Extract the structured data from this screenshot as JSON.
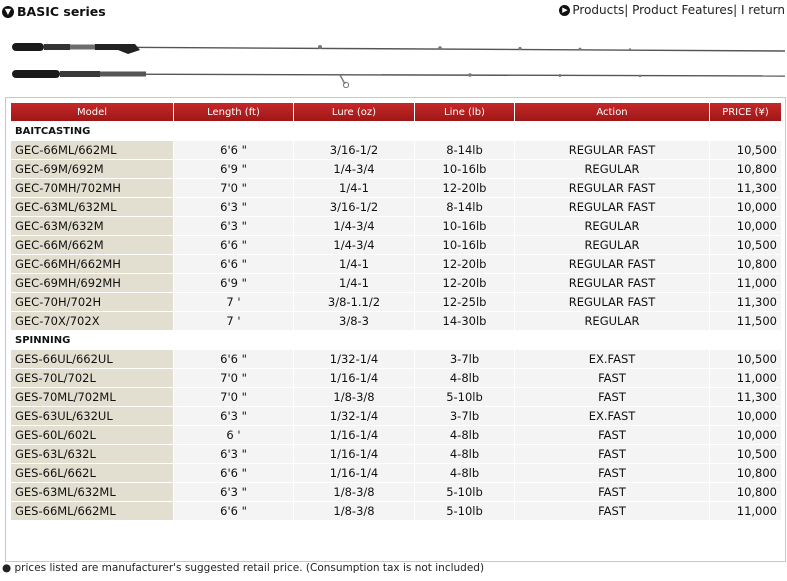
{
  "header": {
    "title": "BASIC series",
    "nav": {
      "products": "Products",
      "features": "Product Features",
      "return": "I return",
      "sep": "|"
    }
  },
  "table": {
    "columns": [
      "Model",
      "Length (ft)",
      "Lure (oz)",
      "Line (lb)",
      "Action",
      "PRICE (¥)"
    ],
    "sections": [
      {
        "name": "BAITCASTING",
        "rows": [
          [
            "GEC-66ML/662ML",
            "6'6 \"",
            "3/16-1/2",
            "8-14lb",
            "REGULAR FAST",
            "10,500"
          ],
          [
            "GEC-69M/692M",
            "6'9 \"",
            "1/4-3/4",
            "10-16lb",
            "REGULAR",
            "10,800"
          ],
          [
            "GEC-70MH/702MH",
            "7'0 \"",
            "1/4-1",
            "12-20lb",
            "REGULAR FAST",
            "11,300"
          ],
          [
            "GEC-63ML/632ML",
            "6'3 \"",
            "3/16-1/2",
            "8-14lb",
            "REGULAR FAST",
            "10,000"
          ],
          [
            "GEC-63M/632M",
            "6'3 \"",
            "1/4-3/4",
            "10-16lb",
            "REGULAR",
            "10,000"
          ],
          [
            "GEC-66M/662M",
            "6'6 \"",
            "1/4-3/4",
            "10-16lb",
            "REGULAR",
            "10,500"
          ],
          [
            "GEC-66MH/662MH",
            "6'6 \"",
            "1/4-1",
            "12-20lb",
            "REGULAR FAST",
            "10,800"
          ],
          [
            "GEC-69MH/692MH",
            "6'9 \"",
            "1/4-1",
            "12-20lb",
            "REGULAR FAST",
            "11,000"
          ],
          [
            "GEC-70H/702H",
            "7 '",
            "3/8-1.1/2",
            "12-25lb",
            "REGULAR FAST",
            "11,300"
          ],
          [
            "GEC-70X/702X",
            "7 '",
            "3/8-3",
            "14-30lb",
            "REGULAR",
            "11,500"
          ]
        ]
      },
      {
        "name": "SPINNING",
        "rows": [
          [
            "GES-66UL/662UL",
            "6'6 \"",
            "1/32-1/4",
            "3-7lb",
            "EX.FAST",
            "10,500"
          ],
          [
            "GES-70L/702L",
            "7'0 \"",
            "1/16-1/4",
            "4-8lb",
            "FAST",
            "11,000"
          ],
          [
            "GES-70ML/702ML",
            "7'0 \"",
            "1/8-3/8",
            "5-10lb",
            "FAST",
            "11,300"
          ],
          [
            "GES-63UL/632UL",
            "6'3 \"",
            "1/32-1/4",
            "3-7lb",
            "EX.FAST",
            "10,000"
          ],
          [
            "GES-60L/602L",
            "6 '",
            "1/16-1/4",
            "4-8lb",
            "FAST",
            "10,000"
          ],
          [
            "GES-63L/632L",
            "6'3 \"",
            "1/16-1/4",
            "4-8lb",
            "FAST",
            "10,500"
          ],
          [
            "GES-66L/662L",
            "6'6 \"",
            "1/16-1/4",
            "4-8lb",
            "FAST",
            "10,800"
          ],
          [
            "GES-63ML/632ML",
            "6'3 \"",
            "1/8-3/8",
            "5-10lb",
            "FAST",
            "10,800"
          ],
          [
            "GES-66ML/662ML",
            "6'6 \"",
            "1/8-3/8",
            "5-10lb",
            "FAST",
            "11,000"
          ]
        ]
      }
    ]
  },
  "footnote": "prices listed are manufacturer's suggested retail price. (Consumption tax is not included)"
}
